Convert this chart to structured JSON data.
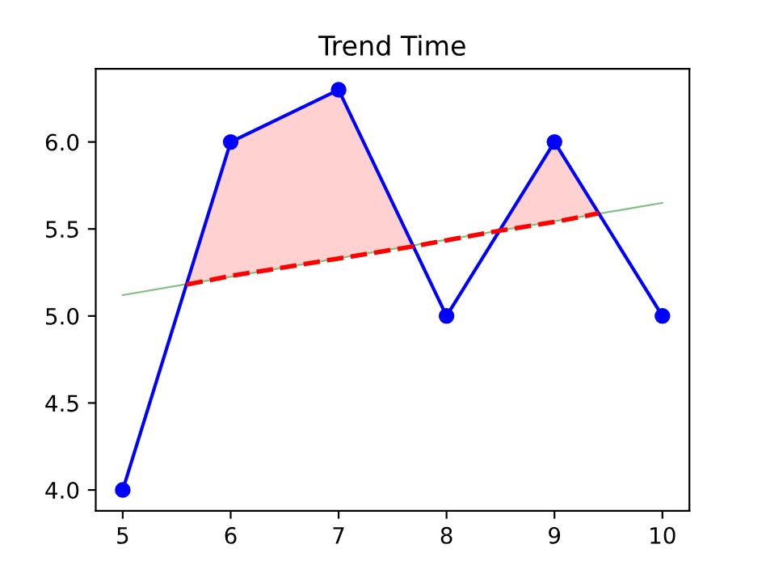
{
  "chart_data": {
    "type": "line",
    "title": "Trend Time",
    "series": [
      {
        "color": "#80c080",
        "x": [
          5,
          10
        ],
        "values": [
          5.12,
          5.65
        ],
        "line_style": "solid",
        "marker": "none"
      },
      {
        "color": "#0000ff",
        "x": [
          5,
          6,
          7,
          8,
          9,
          10
        ],
        "values": [
          4.0,
          6.0,
          6.3,
          5.0,
          6.0,
          5.0
        ],
        "line_style": "solid",
        "marker": "circle"
      },
      {
        "color": "#ff0000",
        "x": [
          5.59,
          6,
          7,
          7.69,
          8.49,
          9,
          9.41
        ],
        "values": [
          5.18,
          5.23,
          5.33,
          5.4,
          5.49,
          5.54,
          5.59
        ],
        "lower": [
          5.18,
          5.23,
          5.33,
          5.4,
          5.49,
          5.54,
          5.59
        ],
        "upper": [
          5.18,
          6.0,
          6.3,
          5.4,
          5.49,
          6.0,
          5.59
        ],
        "line_style": "dashed",
        "marker": "none"
      }
    ],
    "xlim": [
      4.75,
      10.25
    ],
    "xticks": [
      5,
      6,
      7,
      8,
      9,
      10
    ],
    "ylim": [
      3.88,
      6.42
    ],
    "yticks": [
      {
        "value": 4,
        "label": "4.0"
      },
      {
        "value": 4.5,
        "label": "4.5"
      },
      {
        "value": 5,
        "label": "5.0"
      },
      {
        "value": 5.5,
        "label": "5.5"
      },
      {
        "value": 6,
        "label": "6.0"
      }
    ],
    "grid": false
  }
}
